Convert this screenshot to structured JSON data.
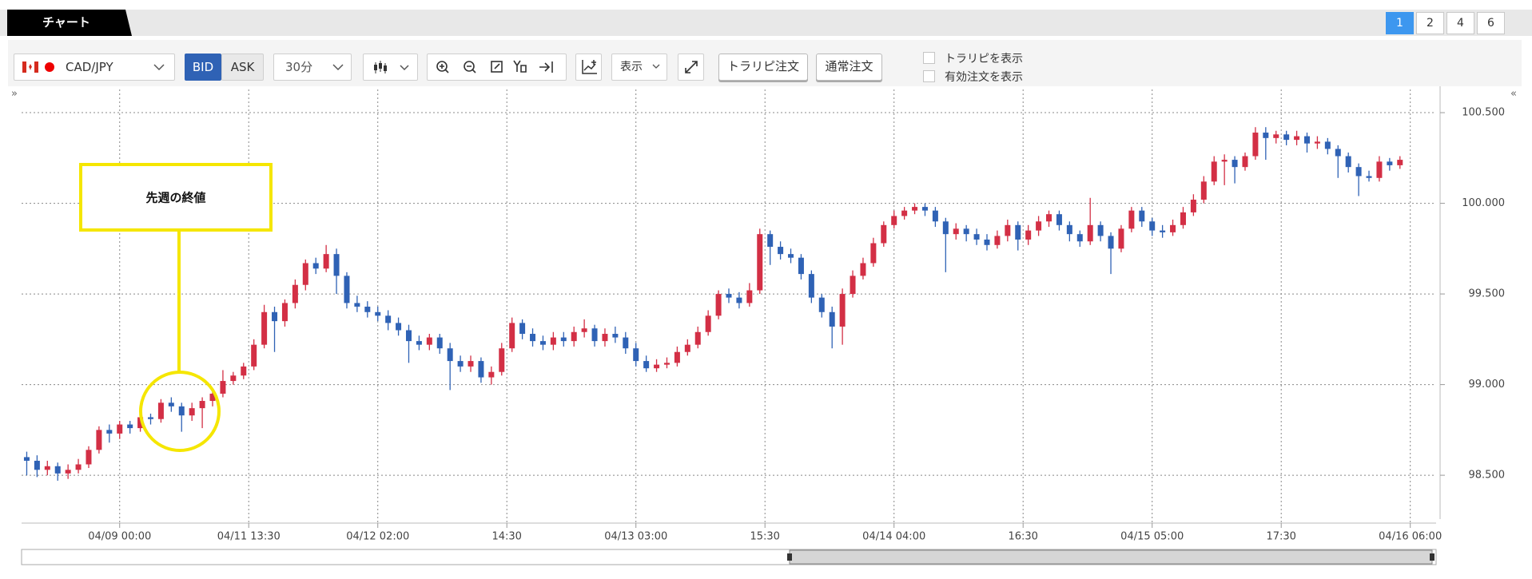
{
  "header": {
    "title": "チャート",
    "pages": [
      "1",
      "2",
      "4",
      "6"
    ]
  },
  "toolbar": {
    "pair": "CAD/JPY",
    "bid": "BID",
    "ask": "ASK",
    "timeframe": "30分",
    "display": "表示",
    "trap_order": "トラリピ注文",
    "normal_order": "通常注文",
    "checkboxes": [
      "トラリピを表示",
      "有効注文を表示"
    ]
  },
  "chart_data": {
    "type": "candlestick",
    "up_color": "#d32f45",
    "down_color": "#2f62b5",
    "grid": true,
    "annotation": "先週の終値",
    "xlim": [
      -0.5,
      136.5
    ],
    "xticks": [
      {
        "value": 9,
        "label": "04/09 00:00"
      },
      {
        "value": 21.5,
        "label": "04/11 13:30"
      },
      {
        "value": 34,
        "label": "04/12 02:00"
      },
      {
        "value": 46.5,
        "label": "14:30"
      },
      {
        "value": 59,
        "label": "04/13 03:00"
      },
      {
        "value": 71.5,
        "label": "15:30"
      },
      {
        "value": 84,
        "label": "04/14 04:00"
      },
      {
        "value": 96.5,
        "label": "16:30"
      },
      {
        "value": 109,
        "label": "04/15 05:00"
      },
      {
        "value": 121.5,
        "label": "17:30"
      },
      {
        "value": 134,
        "label": "04/16 06:00"
      }
    ],
    "ylim": [
      98.267,
      100.628
    ],
    "yticks": [
      {
        "value": 98.5,
        "label": "98.500"
      },
      {
        "value": 99,
        "label": "99.000"
      },
      {
        "value": 99.5,
        "label": "99.500"
      },
      {
        "value": 100,
        "label": "100.000"
      },
      {
        "value": 100.5,
        "label": "100.500"
      }
    ],
    "open": [
      98.6,
      98.58,
      98.53,
      98.55,
      98.51,
      98.53,
      98.56,
      98.64,
      98.75,
      98.73,
      98.78,
      98.76,
      98.82,
      98.81,
      98.9,
      98.88,
      98.83,
      98.87,
      98.91,
      98.95,
      99.02,
      99.05,
      99.1,
      99.22,
      99.4,
      99.35,
      99.45,
      99.55,
      99.67,
      99.64,
      99.72,
      99.6,
      99.45,
      99.43,
      99.4,
      99.38,
      99.34,
      99.3,
      99.24,
      99.22,
      99.26,
      99.2,
      99.13,
      99.1,
      99.13,
      99.04,
      99.07,
      99.2,
      99.34,
      99.28,
      99.24,
      99.22,
      99.26,
      99.24,
      99.29,
      99.31,
      99.24,
      99.28,
      99.26,
      99.2,
      99.13,
      99.09,
      99.11,
      99.12,
      99.18,
      99.22,
      99.29,
      99.38,
      99.5,
      99.48,
      99.45,
      99.52,
      99.83,
      99.76,
      99.72,
      99.7,
      99.61,
      99.48,
      99.4,
      99.32,
      99.5,
      99.6,
      99.67,
      99.78,
      99.88,
      99.93,
      99.96,
      99.98,
      99.96,
      99.9,
      99.83,
      99.86,
      99.83,
      99.8,
      99.77,
      99.82,
      99.88,
      99.8,
      99.85,
      99.9,
      99.94,
      99.88,
      99.83,
      99.79,
      99.88,
      99.82,
      99.75,
      99.86,
      99.96,
      99.9,
      99.85,
      99.84,
      99.88,
      99.95,
      100.02,
      100.12,
      100.23,
      100.24,
      100.2,
      100.26,
      100.39,
      100.36,
      100.38,
      100.35,
      100.37,
      100.33,
      100.34,
      100.3,
      100.26,
      100.2,
      100.15,
      100.14,
      100.23,
      100.21
    ],
    "high": [
      98.63,
      98.61,
      98.58,
      98.57,
      98.56,
      98.59,
      98.66,
      98.77,
      98.78,
      98.8,
      98.8,
      98.84,
      98.84,
      98.92,
      98.93,
      98.9,
      98.9,
      98.93,
      98.98,
      99.08,
      99.07,
      99.12,
      99.25,
      99.44,
      99.43,
      99.47,
      99.58,
      99.69,
      99.7,
      99.77,
      99.75,
      99.62,
      99.49,
      99.46,
      99.43,
      99.41,
      99.37,
      99.33,
      99.27,
      99.28,
      99.28,
      99.23,
      99.16,
      99.16,
      99.15,
      99.1,
      99.23,
      99.37,
      99.36,
      99.31,
      99.27,
      99.29,
      99.29,
      99.32,
      99.36,
      99.33,
      99.31,
      99.32,
      99.29,
      99.23,
      99.16,
      99.14,
      99.15,
      99.21,
      99.25,
      99.32,
      99.41,
      99.52,
      99.53,
      99.51,
      99.56,
      99.86,
      99.85,
      99.79,
      99.75,
      99.72,
      99.63,
      99.5,
      99.43,
      99.53,
      99.63,
      99.7,
      99.81,
      99.9,
      99.96,
      99.98,
      100.0,
      100.0,
      99.98,
      99.92,
      99.89,
      99.88,
      99.86,
      99.83,
      99.85,
      99.91,
      99.9,
      99.88,
      99.93,
      99.96,
      99.96,
      99.9,
      99.85,
      100.03,
      99.9,
      99.84,
      99.88,
      99.98,
      99.98,
      99.92,
      99.88,
      99.91,
      99.98,
      100.05,
      100.15,
      100.26,
      100.27,
      100.26,
      100.28,
      100.42,
      100.42,
      100.4,
      100.4,
      100.4,
      100.39,
      100.37,
      100.36,
      100.32,
      100.28,
      100.22,
      100.18,
      100.26,
      100.25,
      100.26
    ],
    "low": [
      98.5,
      98.49,
      98.5,
      98.47,
      98.48,
      98.51,
      98.54,
      98.62,
      98.68,
      98.7,
      98.73,
      98.74,
      98.78,
      98.79,
      98.85,
      98.74,
      98.8,
      98.76,
      98.88,
      98.93,
      99.0,
      99.03,
      99.08,
      99.2,
      99.18,
      99.32,
      99.42,
      99.52,
      99.61,
      99.62,
      99.5,
      99.42,
      99.4,
      99.37,
      99.35,
      99.3,
      99.27,
      99.12,
      99.19,
      99.19,
      99.17,
      98.97,
      99.07,
      99.07,
      99.01,
      99.0,
      99.05,
      99.18,
      99.25,
      99.21,
      99.19,
      99.19,
      99.21,
      99.21,
      99.26,
      99.21,
      99.21,
      99.23,
      99.17,
      99.1,
      99.07,
      99.07,
      99.09,
      99.1,
      99.16,
      99.2,
      99.27,
      99.36,
      99.45,
      99.42,
      99.43,
      99.5,
      99.66,
      99.69,
      99.67,
      99.58,
      99.45,
      99.37,
      99.2,
      99.22,
      99.48,
      99.58,
      99.65,
      99.76,
      99.86,
      99.91,
      99.94,
      99.93,
      99.87,
      99.62,
      99.8,
      99.79,
      99.77,
      99.74,
      99.75,
      99.79,
      99.74,
      99.77,
      99.82,
      99.87,
      99.85,
      99.79,
      99.76,
      99.77,
      99.79,
      99.61,
      99.73,
      99.84,
      99.87,
      99.82,
      99.81,
      99.82,
      99.86,
      99.93,
      100.0,
      100.1,
      100.1,
      100.11,
      100.18,
      100.24,
      100.24,
      100.33,
      100.32,
      100.32,
      100.28,
      100.3,
      100.27,
      100.14,
      100.17,
      100.04,
      100.12,
      100.12,
      100.18,
      100.19
    ],
    "close": [
      98.58,
      98.53,
      98.55,
      98.51,
      98.53,
      98.56,
      98.64,
      98.75,
      98.73,
      98.78,
      98.76,
      98.82,
      98.81,
      98.9,
      98.88,
      98.83,
      98.87,
      98.91,
      98.95,
      99.02,
      99.05,
      99.1,
      99.22,
      99.4,
      99.35,
      99.45,
      99.55,
      99.67,
      99.64,
      99.72,
      99.6,
      99.45,
      99.43,
      99.4,
      99.38,
      99.34,
      99.3,
      99.24,
      99.22,
      99.26,
      99.2,
      99.13,
      99.1,
      99.13,
      99.04,
      99.07,
      99.2,
      99.34,
      99.28,
      99.24,
      99.22,
      99.26,
      99.24,
      99.29,
      99.31,
      99.24,
      99.28,
      99.26,
      99.2,
      99.13,
      99.09,
      99.11,
      99.12,
      99.18,
      99.22,
      99.29,
      99.38,
      99.5,
      99.48,
      99.45,
      99.52,
      99.83,
      99.76,
      99.72,
      99.7,
      99.61,
      99.48,
      99.4,
      99.32,
      99.5,
      99.6,
      99.67,
      99.78,
      99.88,
      99.93,
      99.96,
      99.98,
      99.96,
      99.9,
      99.83,
      99.86,
      99.83,
      99.8,
      99.77,
      99.82,
      99.88,
      99.8,
      99.85,
      99.9,
      99.94,
      99.88,
      99.83,
      99.79,
      99.88,
      99.82,
      99.75,
      99.86,
      99.96,
      99.9,
      99.85,
      99.84,
      99.88,
      99.95,
      100.02,
      100.12,
      100.23,
      100.24,
      100.2,
      100.26,
      100.39,
      100.36,
      100.38,
      100.35,
      100.37,
      100.33,
      100.34,
      100.3,
      100.26,
      100.2,
      100.15,
      100.14,
      100.23,
      100.21,
      100.24
    ]
  }
}
